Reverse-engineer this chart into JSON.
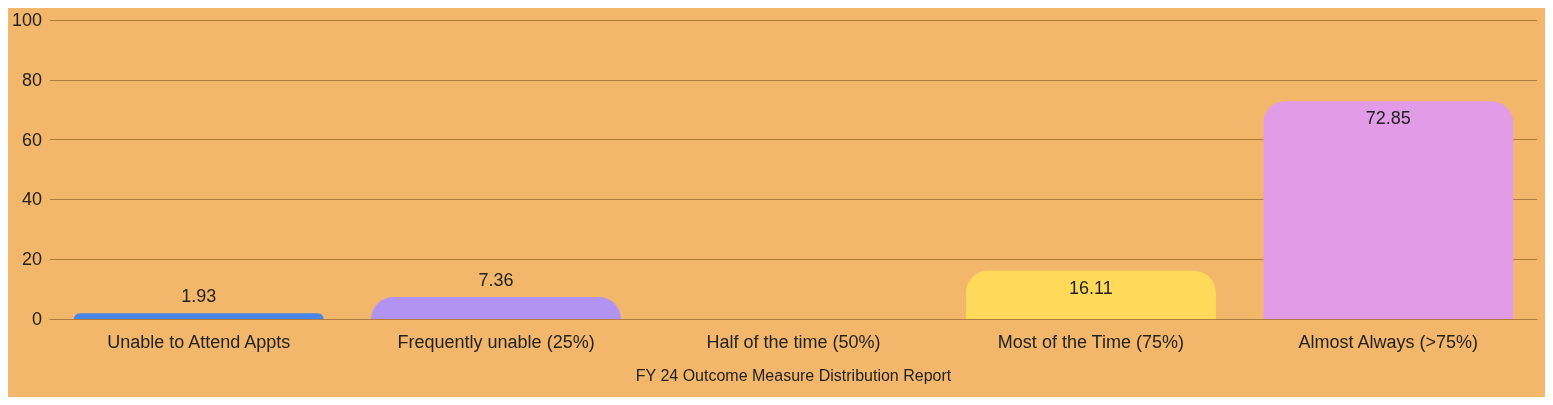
{
  "chart_data": {
    "type": "bar",
    "xlabel": "FY 24 Outcome Measure Distribution Report",
    "categories": [
      "Unable to Attend Appts",
      "Frequently unable (25%)",
      "Half of the time (50%)",
      "Most of the Time (75%)",
      "Almost Always (>75%)"
    ],
    "values": [
      1.93,
      7.36,
      0,
      16.11,
      72.85
    ],
    "value_labels": [
      "1.93",
      "7.36",
      null,
      "16.11",
      "72.85"
    ],
    "colors": [
      "#4a86e8",
      "#b293f2",
      "#f5e06b",
      "#ffd95a",
      "#e29be6"
    ],
    "ylim": [
      0,
      100
    ],
    "yticks": [
      0,
      20,
      40,
      60,
      80,
      100
    ],
    "grid": "y"
  }
}
